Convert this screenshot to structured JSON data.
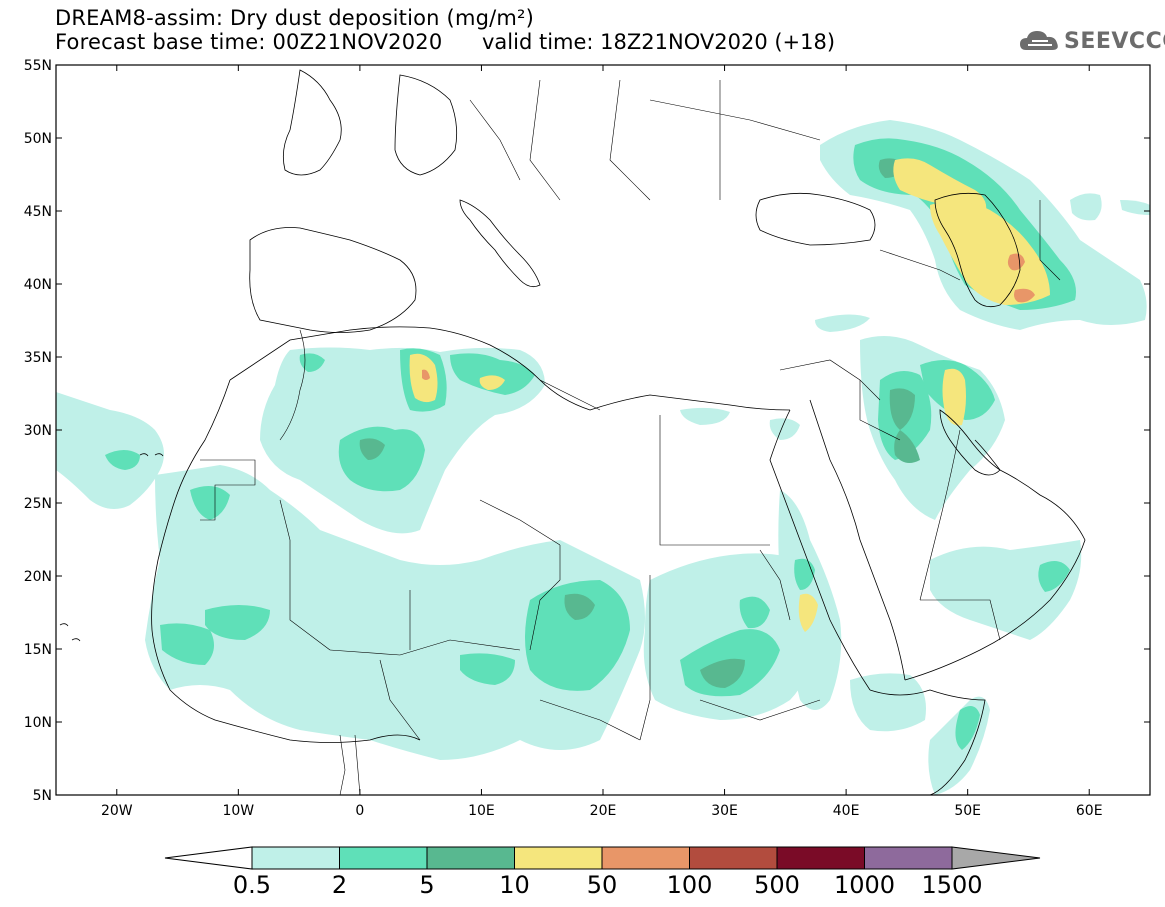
{
  "header": {
    "title_line1": "DREAM8-assim: Dry dust deposition (mg/m²)",
    "base_time": "Forecast base time: 00Z21NOV2020",
    "valid_time": "valid time: 18Z21NOV2020 (+18)"
  },
  "logo": {
    "text": "SEEVCCC",
    "icon": "cloud-icon",
    "color": "#6c6c6c"
  },
  "map": {
    "lon_range": [
      -25,
      65
    ],
    "lat_range": [
      5,
      55
    ],
    "lat_ticks": [
      "5N",
      "10N",
      "15N",
      "20N",
      "25N",
      "30N",
      "35N",
      "40N",
      "45N",
      "50N",
      "55N"
    ],
    "lon_ticks": [
      "20W",
      "10W",
      "0",
      "10E",
      "20E",
      "30E",
      "40E",
      "50E",
      "60E"
    ],
    "lon_tick_values": [
      -20,
      -10,
      0,
      10,
      20,
      30,
      40,
      50,
      60
    ],
    "lat_tick_values": [
      5,
      10,
      15,
      20,
      25,
      30,
      35,
      40,
      45,
      50,
      55
    ]
  },
  "legend": {
    "labels": [
      "0.5",
      "2",
      "5",
      "10",
      "50",
      "100",
      "500",
      "1000",
      "1500"
    ],
    "colors": [
      "#ffffff",
      "#bff0e8",
      "#5fe0b8",
      "#58b890",
      "#f5e67d",
      "#e89668",
      "#b24c3e",
      "#7a0b27",
      "#8e6a9c",
      "#a8a8a8"
    ]
  }
}
